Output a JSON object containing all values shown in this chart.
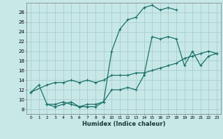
{
  "xlabel": "Humidex (Indice chaleur)",
  "bg_color": "#c8e8e8",
  "line_color": "#1a7068",
  "grid_color": "#a8cccc",
  "xlim": [
    -0.5,
    23.5
  ],
  "ylim": [
    7.0,
    30.0
  ],
  "xticks": [
    0,
    1,
    2,
    3,
    4,
    5,
    6,
    7,
    8,
    9,
    10,
    11,
    12,
    13,
    14,
    15,
    16,
    17,
    18,
    19,
    20,
    21,
    22,
    23
  ],
  "yticks": [
    8,
    10,
    12,
    14,
    16,
    18,
    20,
    22,
    24,
    26,
    28
  ],
  "line1_x": [
    0,
    1,
    2,
    3,
    4,
    5,
    6,
    7,
    8,
    9,
    10,
    11,
    12,
    13,
    14,
    15,
    16,
    17,
    18
  ],
  "line1_y": [
    11.5,
    13,
    9.0,
    8.5,
    9.0,
    9.5,
    8.5,
    9.0,
    9.0,
    9.5,
    20,
    24.5,
    26.5,
    27.0,
    29,
    29.5,
    28.5,
    29.0,
    28.5
  ],
  "line2_x": [
    0,
    2,
    3,
    4,
    5,
    6,
    7,
    8,
    9,
    10,
    11,
    12,
    13,
    14,
    15,
    16,
    17,
    18,
    19,
    20,
    21,
    22,
    23
  ],
  "line2_y": [
    11.5,
    13,
    13.5,
    13.5,
    14,
    13.5,
    14,
    13.5,
    14,
    15,
    15,
    15,
    15.5,
    15.5,
    16,
    16.5,
    17,
    17.5,
    18.5,
    19,
    19.5,
    20,
    19.5
  ],
  "line3_x": [
    2,
    3,
    4,
    5,
    6,
    7,
    8,
    9,
    10,
    11,
    12,
    13,
    14,
    15,
    16,
    17,
    18,
    19,
    20,
    21,
    22,
    23
  ],
  "line3_y": [
    9,
    9,
    9.5,
    9,
    8.5,
    8.5,
    8.5,
    9.5,
    12,
    12,
    12.5,
    12.0,
    15,
    23,
    22.5,
    23,
    22.5,
    17,
    20,
    17,
    19,
    19.5
  ]
}
